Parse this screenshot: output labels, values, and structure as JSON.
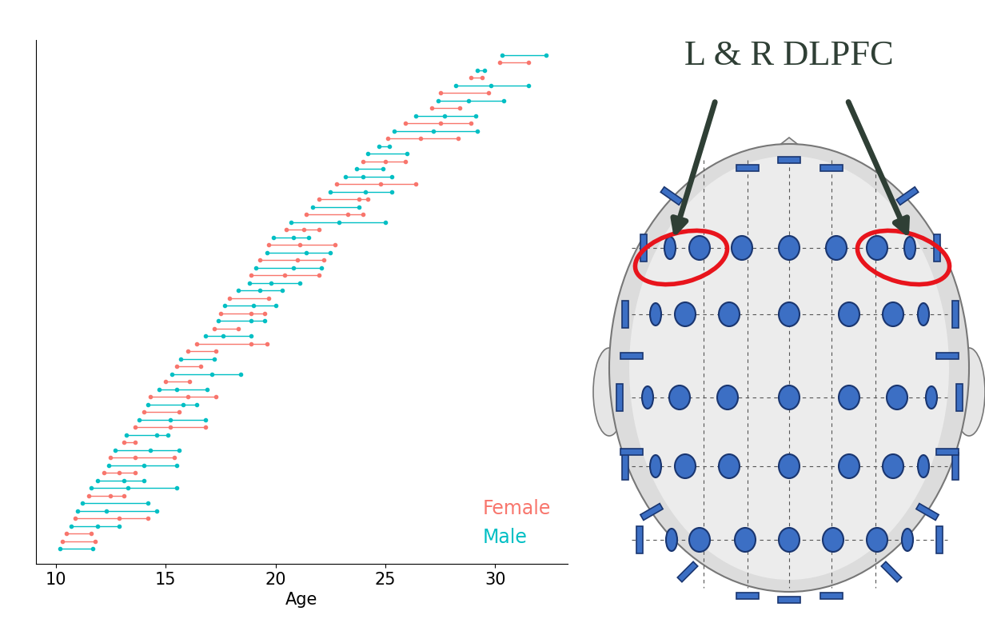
{
  "chart_data": {
    "type": "dumbbell",
    "xlabel": "Age",
    "xlim": [
      9.1,
      33.3
    ],
    "xticks": [
      10,
      15,
      20,
      25,
      30
    ],
    "tick_labels": "x",
    "legend": "lower right",
    "marker": "o",
    "series": [
      {
        "name": "Female",
        "color": "#F8766D"
      },
      {
        "name": "Male",
        "color": "#00BFC4"
      }
    ],
    "subjects": [
      {
        "group": "Male",
        "ages": [
          10.2,
          11.7
        ]
      },
      {
        "group": "Female",
        "ages": [
          10.3,
          11.8
        ]
      },
      {
        "group": "Female",
        "ages": [
          10.5,
          11.6
        ]
      },
      {
        "group": "Male",
        "ages": [
          10.7,
          11.9,
          12.9
        ]
      },
      {
        "group": "Female",
        "ages": [
          10.9,
          12.9,
          14.2
        ]
      },
      {
        "group": "Male",
        "ages": [
          11.0,
          12.3,
          14.6
        ]
      },
      {
        "group": "Male",
        "ages": [
          11.2,
          14.2
        ]
      },
      {
        "group": "Female",
        "ages": [
          11.5,
          12.5,
          13.1
        ]
      },
      {
        "group": "Male",
        "ages": [
          11.6,
          13.3,
          15.5
        ]
      },
      {
        "group": "Male",
        "ages": [
          11.9,
          13.1,
          14.0
        ]
      },
      {
        "group": "Female",
        "ages": [
          12.2,
          12.9,
          13.6
        ]
      },
      {
        "group": "Male",
        "ages": [
          12.4,
          14.0,
          15.5
        ]
      },
      {
        "group": "Female",
        "ages": [
          12.5,
          13.6,
          15.4
        ]
      },
      {
        "group": "Male",
        "ages": [
          12.7,
          14.3,
          15.6
        ]
      },
      {
        "group": "Female",
        "ages": [
          13.1,
          13.6
        ]
      },
      {
        "group": "Male",
        "ages": [
          13.2,
          14.6,
          15.1
        ]
      },
      {
        "group": "Female",
        "ages": [
          13.6,
          15.2,
          16.8
        ]
      },
      {
        "group": "Male",
        "ages": [
          13.8,
          15.2,
          16.8
        ]
      },
      {
        "group": "Female",
        "ages": [
          14.0,
          15.6
        ]
      },
      {
        "group": "Male",
        "ages": [
          14.2,
          15.8,
          16.4
        ]
      },
      {
        "group": "Female",
        "ages": [
          14.3,
          16.0,
          17.3
        ]
      },
      {
        "group": "Male",
        "ages": [
          14.7,
          15.5,
          16.9
        ]
      },
      {
        "group": "Female",
        "ages": [
          15.0,
          16.1
        ]
      },
      {
        "group": "Male",
        "ages": [
          15.3,
          17.1,
          18.4
        ]
      },
      {
        "group": "Female",
        "ages": [
          15.5,
          16.6
        ]
      },
      {
        "group": "Male",
        "ages": [
          15.7,
          17.2
        ]
      },
      {
        "group": "Female",
        "ages": [
          16.0,
          17.3
        ]
      },
      {
        "group": "Female",
        "ages": [
          16.4,
          18.9,
          19.6
        ]
      },
      {
        "group": "Male",
        "ages": [
          16.8,
          17.6,
          18.9
        ]
      },
      {
        "group": "Female",
        "ages": [
          17.2,
          18.3
        ]
      },
      {
        "group": "Male",
        "ages": [
          17.4,
          18.9,
          19.5
        ]
      },
      {
        "group": "Female",
        "ages": [
          17.5,
          18.9,
          19.5
        ]
      },
      {
        "group": "Male",
        "ages": [
          17.7,
          19.0,
          20.0
        ]
      },
      {
        "group": "Female",
        "ages": [
          17.9,
          19.7
        ]
      },
      {
        "group": "Male",
        "ages": [
          18.3,
          19.3,
          20.3
        ]
      },
      {
        "group": "Male",
        "ages": [
          18.8,
          19.8,
          21.1
        ]
      },
      {
        "group": "Female",
        "ages": [
          18.9,
          20.4,
          22.0
        ]
      },
      {
        "group": "Male",
        "ages": [
          19.1,
          20.8,
          22.1
        ]
      },
      {
        "group": "Female",
        "ages": [
          19.3,
          21.0,
          22.2
        ]
      },
      {
        "group": "Male",
        "ages": [
          19.6,
          21.4,
          22.5
        ]
      },
      {
        "group": "Female",
        "ages": [
          19.7,
          21.1,
          22.7
        ]
      },
      {
        "group": "Male",
        "ages": [
          19.9,
          20.8,
          21.5
        ]
      },
      {
        "group": "Female",
        "ages": [
          20.5,
          21.3,
          22.0
        ]
      },
      {
        "group": "Male",
        "ages": [
          20.7,
          22.9,
          25.0
        ]
      },
      {
        "group": "Female",
        "ages": [
          21.4,
          23.3,
          24.0
        ]
      },
      {
        "group": "Male",
        "ages": [
          21.7,
          23.8
        ]
      },
      {
        "group": "Female",
        "ages": [
          22.0,
          23.8,
          24.2
        ]
      },
      {
        "group": "Male",
        "ages": [
          22.5,
          24.1,
          25.3
        ]
      },
      {
        "group": "Female",
        "ages": [
          22.8,
          24.8,
          26.4
        ]
      },
      {
        "group": "Male",
        "ages": [
          23.2,
          24.0,
          25.3
        ]
      },
      {
        "group": "Male",
        "ages": [
          23.7,
          24.9
        ]
      },
      {
        "group": "Female",
        "ages": [
          24.0,
          25.0,
          25.9
        ]
      },
      {
        "group": "Male",
        "ages": [
          24.2,
          26.0
        ]
      },
      {
        "group": "Male",
        "ages": [
          24.7,
          25.2
        ]
      },
      {
        "group": "Female",
        "ages": [
          25.1,
          26.6,
          28.3
        ]
      },
      {
        "group": "Male",
        "ages": [
          25.4,
          27.2,
          29.2
        ]
      },
      {
        "group": "Female",
        "ages": [
          25.9,
          27.5,
          28.9
        ]
      },
      {
        "group": "Male",
        "ages": [
          26.4,
          27.7,
          29.1
        ]
      },
      {
        "group": "Female",
        "ages": [
          27.1,
          28.4
        ]
      },
      {
        "group": "Male",
        "ages": [
          27.4,
          28.8,
          30.4
        ]
      },
      {
        "group": "Female",
        "ages": [
          27.5,
          29.7
        ]
      },
      {
        "group": "Male",
        "ages": [
          28.2,
          29.8,
          31.5
        ]
      },
      {
        "group": "Female",
        "ages": [
          28.9,
          29.4
        ]
      },
      {
        "group": "Male",
        "ages": [
          29.2,
          29.5
        ]
      },
      {
        "group": "Female",
        "ages": [
          30.2,
          31.5
        ]
      },
      {
        "group": "Male",
        "ages": [
          30.3,
          32.3
        ]
      }
    ]
  },
  "diagram": {
    "title": "L & R DLPFC"
  }
}
